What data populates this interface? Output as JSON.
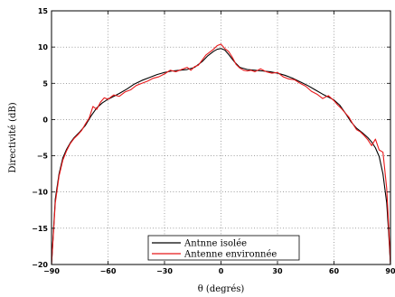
{
  "chart_data": {
    "type": "line",
    "title": "",
    "xlabel": "θ (degrés)",
    "ylabel": "Directivité (dB)",
    "xlim": [
      -90,
      90
    ],
    "ylim": [
      -20,
      15
    ],
    "xticks": [
      -90,
      -60,
      -30,
      0,
      30,
      60,
      90
    ],
    "yticks": [
      -20,
      -15,
      -10,
      -5,
      0,
      5,
      10,
      15
    ],
    "grid": true,
    "legend_position": "bottom-center",
    "series": [
      {
        "name": "Antnne isolée",
        "color": "#000000",
        "x": [
          -90,
          -89,
          -88,
          -86,
          -84,
          -82,
          -80,
          -78,
          -75,
          -72,
          -69,
          -66,
          -63,
          -60,
          -57,
          -54,
          -50,
          -46,
          -42,
          -38,
          -34,
          -30,
          -26,
          -22,
          -18,
          -14,
          -10,
          -7,
          -4,
          -2,
          0,
          2,
          4,
          7,
          10,
          14,
          18,
          22,
          26,
          30,
          34,
          38,
          42,
          46,
          50,
          54,
          57,
          60,
          63,
          66,
          69,
          72,
          75,
          78,
          80,
          82,
          84,
          86,
          88,
          89,
          90
        ],
        "y": [
          -20,
          -15.5,
          -11,
          -7.5,
          -5.3,
          -4.1,
          -3.2,
          -2.5,
          -1.7,
          -0.8,
          0.5,
          1.6,
          2.3,
          2.8,
          3.2,
          3.6,
          4.2,
          4.9,
          5.4,
          5.8,
          6.2,
          6.5,
          6.7,
          6.8,
          6.9,
          7.2,
          8.0,
          8.8,
          9.4,
          9.7,
          9.8,
          9.6,
          9.0,
          8.0,
          7.2,
          6.9,
          6.8,
          6.7,
          6.6,
          6.4,
          6.1,
          5.7,
          5.2,
          4.7,
          4.1,
          3.5,
          3.1,
          2.7,
          2.0,
          0.9,
          -0.3,
          -1.2,
          -1.8,
          -2.5,
          -3.1,
          -3.9,
          -5.1,
          -7.5,
          -11.5,
          -15.5,
          -20
        ]
      },
      {
        "name": "Antenne environnée",
        "color": "#e8191b",
        "x": [
          -90,
          -89,
          -88,
          -86,
          -84,
          -82,
          -80,
          -78,
          -76,
          -74,
          -72,
          -70,
          -68,
          -66,
          -64,
          -62,
          -60,
          -57,
          -54,
          -51,
          -48,
          -45,
          -42,
          -39,
          -36,
          -33,
          -30,
          -27,
          -24,
          -21,
          -18,
          -16,
          -14,
          -12,
          -10,
          -8,
          -6,
          -4,
          -2,
          0,
          2,
          4,
          6,
          8,
          10,
          12,
          14,
          16,
          18,
          21,
          24,
          27,
          30,
          33,
          36,
          39,
          42,
          45,
          48,
          51,
          54,
          57,
          60,
          62,
          64,
          66,
          68,
          70,
          72,
          74,
          76,
          78,
          80,
          82,
          84,
          86,
          88,
          89,
          90
        ],
        "y": [
          -20,
          -15.8,
          -11.5,
          -7.8,
          -5.6,
          -4.3,
          -3.3,
          -2.6,
          -2.1,
          -1.5,
          -0.6,
          0.2,
          1.8,
          1.4,
          2.4,
          3.0,
          2.8,
          3.4,
          3.2,
          3.8,
          4.1,
          4.7,
          5.0,
          5.3,
          5.7,
          5.9,
          6.3,
          6.8,
          6.6,
          6.9,
          7.2,
          6.8,
          7.3,
          7.5,
          8.2,
          8.9,
          9.3,
          9.7,
          10.2,
          10.4,
          9.8,
          9.4,
          8.6,
          7.6,
          7.1,
          6.8,
          6.7,
          6.8,
          6.6,
          7.0,
          6.6,
          6.4,
          6.5,
          5.9,
          5.6,
          5.5,
          5.0,
          4.6,
          3.9,
          3.5,
          2.9,
          3.3,
          2.6,
          2.0,
          1.5,
          0.9,
          0.3,
          -0.6,
          -1.4,
          -1.7,
          -2.2,
          -2.8,
          -3.6,
          -2.7,
          -4.2,
          -4.5,
          -9.5,
          -14.5,
          -20
        ]
      }
    ]
  }
}
